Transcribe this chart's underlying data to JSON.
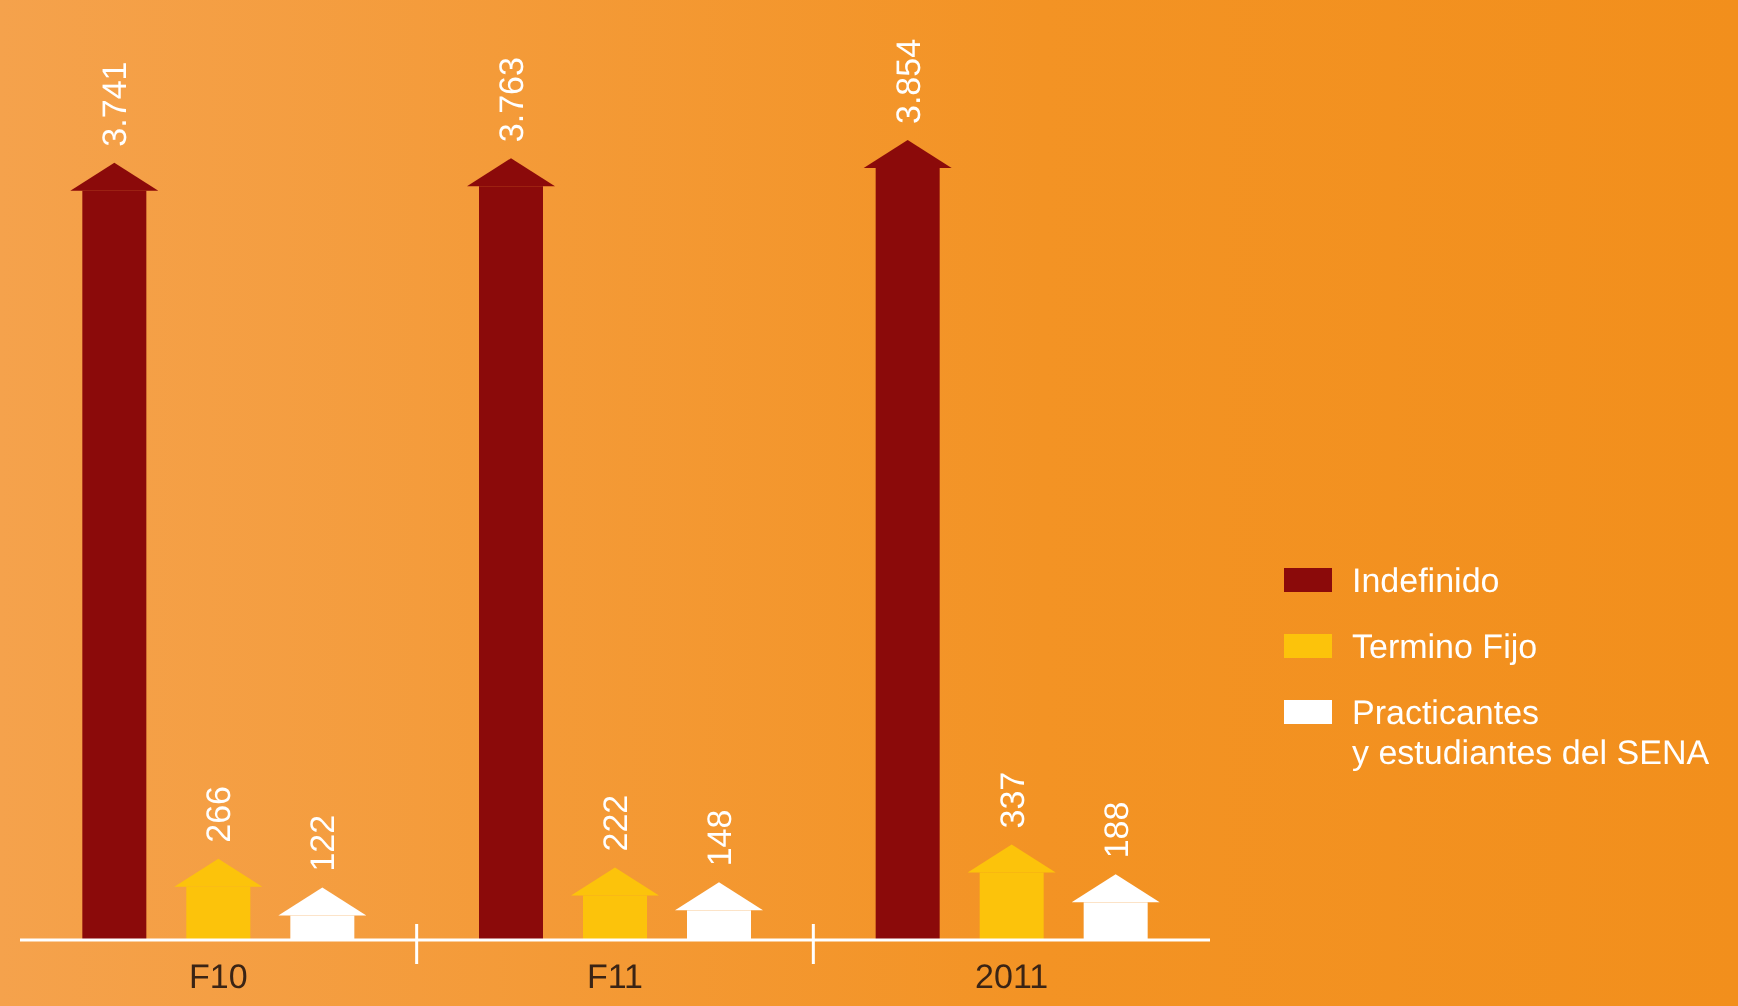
{
  "chart_data": {
    "type": "bar",
    "categories": [
      "F10",
      "F11",
      "2011"
    ],
    "series": [
      {
        "name": "Indefinido",
        "color": "#8b0a0a",
        "values": [
          3741,
          3763,
          3854
        ],
        "value_labels": [
          "3.741",
          "3.763",
          "3.854"
        ]
      },
      {
        "name": "Termino Fijo",
        "color": "#fcc30b",
        "values": [
          266,
          222,
          337
        ],
        "value_labels": [
          "266",
          "222",
          "337"
        ]
      },
      {
        "name": "Practicantes\ny estudiantes del SENA",
        "color": "#ffffff",
        "values": [
          122,
          148,
          188
        ],
        "value_labels": [
          "122",
          "148",
          "188"
        ]
      }
    ],
    "legend": "right"
  }
}
